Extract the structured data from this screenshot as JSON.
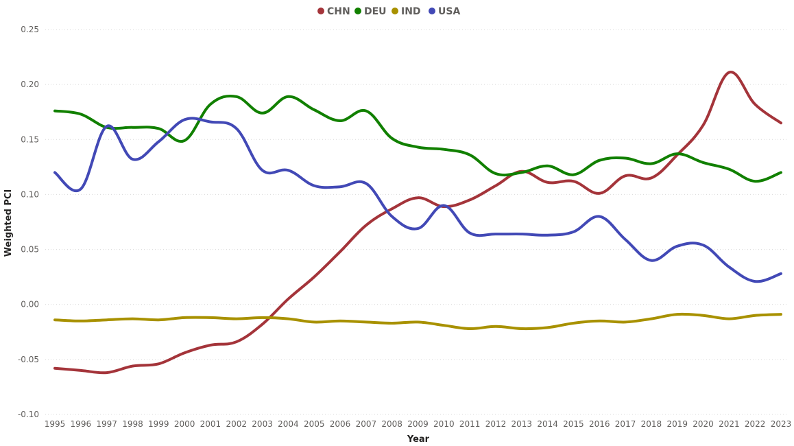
{
  "chart_data": {
    "type": "line",
    "title": "",
    "xlabel": "Year",
    "ylabel": "Weighted PCI",
    "ylim": [
      -0.1,
      0.25
    ],
    "yticks": [
      0.25,
      0.2,
      0.15,
      0.1,
      0.05,
      0.0,
      -0.05,
      -0.1
    ],
    "ytick_labels": [
      "0.25",
      "0.20",
      "0.15",
      "0.10",
      "0.05",
      "0.00",
      "-0.05",
      "-0.10"
    ],
    "grid": true,
    "legend_position": "top-center",
    "x": [
      "1995",
      "1996",
      "1997",
      "1998",
      "1999",
      "2000",
      "2001",
      "2002",
      "2003",
      "2004",
      "2005",
      "2006",
      "2007",
      "2008",
      "2009",
      "2010",
      "2011",
      "2012",
      "2013",
      "2014",
      "2015",
      "2016",
      "2017",
      "2018",
      "2019",
      "2020",
      "2021",
      "2022",
      "2023"
    ],
    "series": [
      {
        "name": "CHN",
        "color": "#a4343a",
        "values": [
          -0.058,
          -0.06,
          -0.062,
          -0.056,
          -0.054,
          -0.044,
          -0.037,
          -0.034,
          -0.018,
          0.005,
          0.025,
          0.048,
          0.072,
          0.087,
          0.097,
          0.089,
          0.095,
          0.108,
          0.121,
          0.111,
          0.112,
          0.101,
          0.117,
          0.115,
          0.136,
          0.163,
          0.211,
          0.182,
          0.165
        ]
      },
      {
        "name": "DEU",
        "color": "#118000",
        "values": [
          0.176,
          0.173,
          0.161,
          0.161,
          0.16,
          0.149,
          0.182,
          0.189,
          0.174,
          0.189,
          0.177,
          0.167,
          0.176,
          0.151,
          0.143,
          0.141,
          0.136,
          0.119,
          0.12,
          0.126,
          0.118,
          0.131,
          0.133,
          0.128,
          0.137,
          0.129,
          0.123,
          0.112,
          0.12
        ]
      },
      {
        "name": "IND",
        "color": "#a89100",
        "values": [
          -0.014,
          -0.015,
          -0.014,
          -0.013,
          -0.014,
          -0.012,
          -0.012,
          -0.013,
          -0.012,
          -0.013,
          -0.016,
          -0.015,
          -0.016,
          -0.017,
          -0.016,
          -0.019,
          -0.022,
          -0.02,
          -0.022,
          -0.021,
          -0.017,
          -0.015,
          -0.016,
          -0.013,
          -0.009,
          -0.01,
          -0.013,
          -0.01,
          -0.009
        ]
      },
      {
        "name": "USA",
        "color": "#4249b6",
        "values": [
          0.12,
          0.105,
          0.162,
          0.132,
          0.148,
          0.168,
          0.166,
          0.16,
          0.122,
          0.122,
          0.108,
          0.107,
          0.11,
          0.08,
          0.069,
          0.09,
          0.065,
          0.064,
          0.064,
          0.063,
          0.066,
          0.08,
          0.059,
          0.04,
          0.053,
          0.054,
          0.034,
          0.021,
          0.028
        ]
      }
    ]
  }
}
